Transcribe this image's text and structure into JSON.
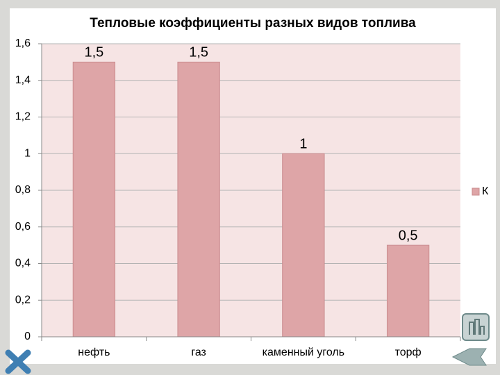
{
  "chart_data": {
    "type": "bar",
    "title": "Тепловые коэффициенты разных видов топлива",
    "categories": [
      "нефть",
      "газ",
      "каменный уголь",
      "торф"
    ],
    "series": [
      {
        "name": "К",
        "color": "#dea5a7",
        "values": [
          1.5,
          1.5,
          1,
          0.5
        ],
        "value_labels": [
          "1,5",
          "1,5",
          "1",
          "0,5"
        ]
      }
    ],
    "ylim": [
      0,
      1.6
    ],
    "yticks": [
      0,
      {
        "value": 0.2,
        "label": "0,2"
      },
      {
        "value": 0.4,
        "label": "0,4"
      },
      {
        "value": 0.6,
        "label": "0,6"
      },
      {
        "value": 0.8,
        "label": "0,8"
      },
      1,
      {
        "value": 1.2,
        "label": "1,2"
      },
      {
        "value": 1.4,
        "label": "1,4"
      },
      {
        "value": 1.6,
        "label": "1,6"
      }
    ],
    "grid": true,
    "legend": "right"
  }
}
